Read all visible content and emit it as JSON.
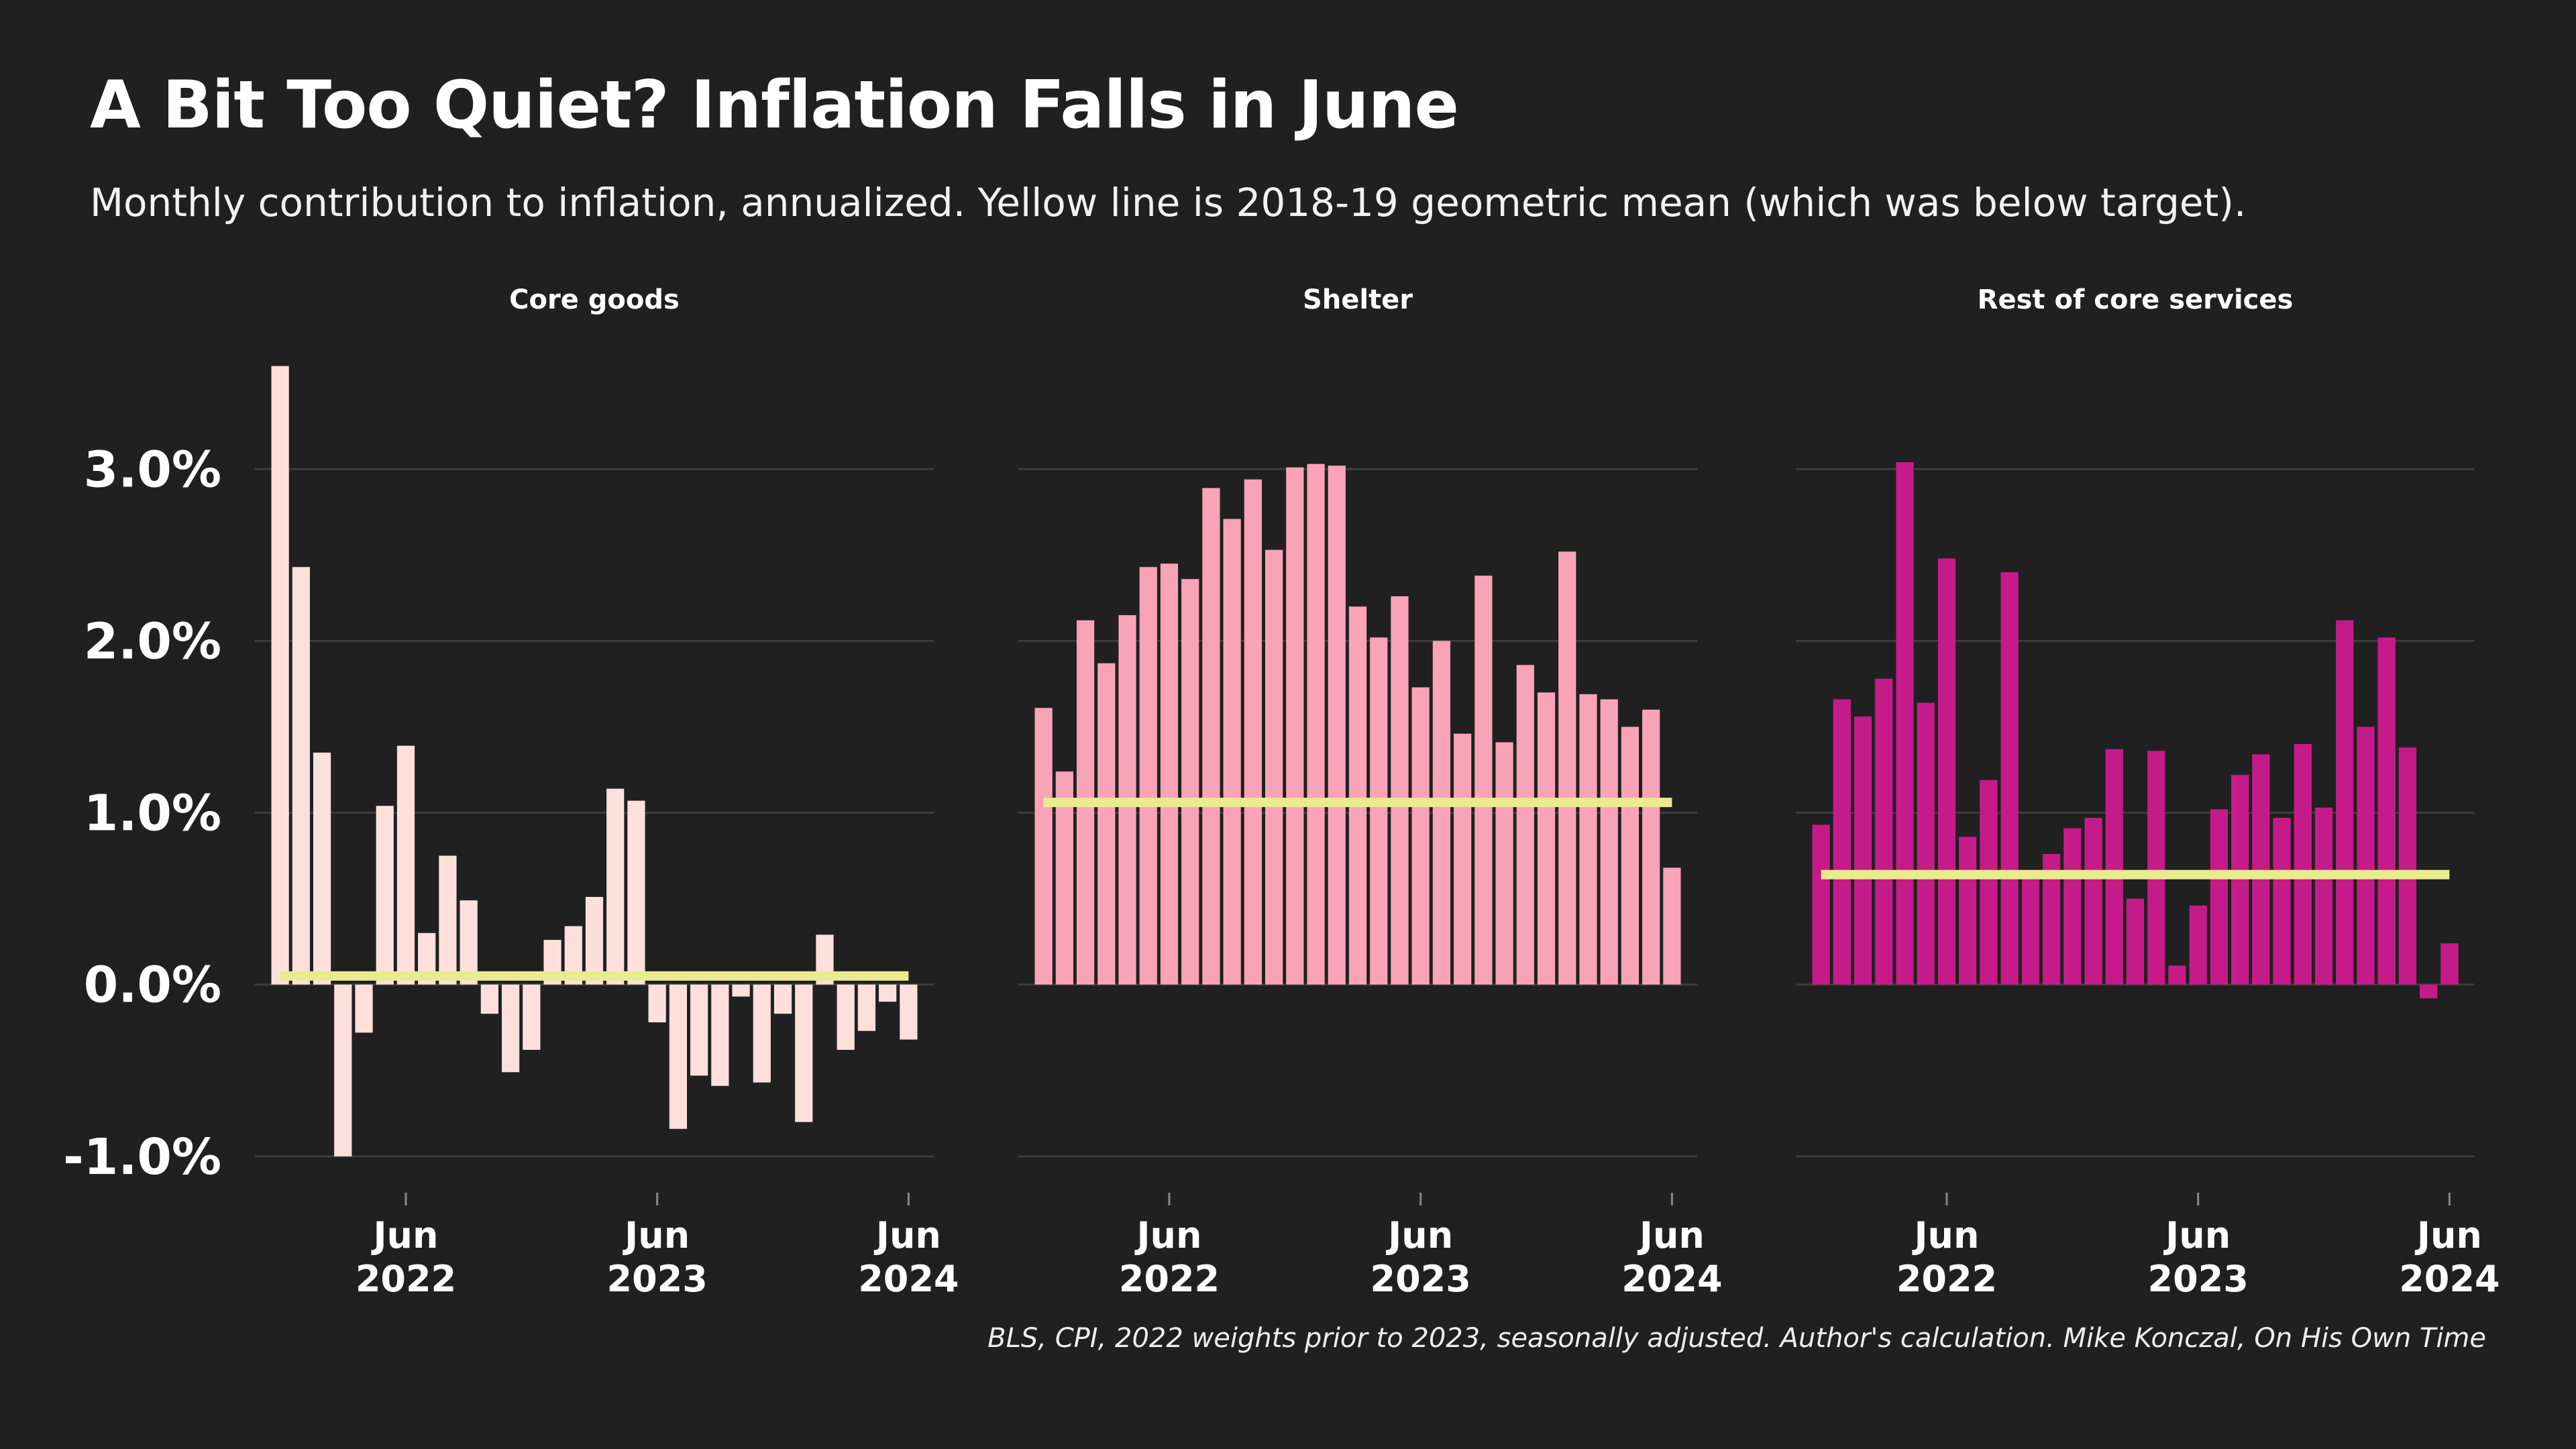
{
  "title": "A Bit Too Quiet? Inflation Falls in June",
  "subtitle": "Monthly contribution to inflation, annualized. Yellow line is 2018-19 geometric mean (which was below target).",
  "caption": "BLS, CPI, 2022 weights prior to 2023, seasonally adjusted. Author's calculation. Mike Konczal, On His Own Time",
  "colors": {
    "background": "#202020",
    "grid": "#3c3c3c",
    "mean_line": "#eaeb8f",
    "core_goods": "#fde0dc",
    "shelter": "#f9a3b9",
    "rest_services": "#c51b8a"
  },
  "chart_data": [
    {
      "type": "bar",
      "title": "Core goods",
      "color": "#fde0dc",
      "x": [
        "2021-12",
        "2022-01",
        "2022-02",
        "2022-03",
        "2022-04",
        "2022-05",
        "2022-06",
        "2022-07",
        "2022-08",
        "2022-09",
        "2022-10",
        "2022-11",
        "2022-12",
        "2023-01",
        "2023-02",
        "2023-03",
        "2023-04",
        "2023-05",
        "2023-06",
        "2023-07",
        "2023-08",
        "2023-09",
        "2023-10",
        "2023-11",
        "2023-12",
        "2024-01",
        "2024-02",
        "2024-03",
        "2024-04",
        "2024-05",
        "2024-06"
      ],
      "values": [
        3.6,
        2.43,
        1.35,
        -1.0,
        -0.28,
        1.04,
        1.39,
        0.3,
        0.75,
        0.49,
        -0.17,
        -0.51,
        -0.38,
        0.26,
        0.34,
        0.51,
        1.14,
        1.07,
        -0.22,
        -0.84,
        -0.53,
        -0.59,
        -0.07,
        -0.57,
        -0.17,
        -0.8,
        0.29,
        -0.38,
        -0.27,
        -0.1,
        -0.32
      ],
      "mean": 0.05,
      "x_ticks": [
        {
          "date": "2022-06",
          "label": [
            "Jun",
            "2022"
          ]
        },
        {
          "date": "2023-06",
          "label": [
            "Jun",
            "2023"
          ]
        },
        {
          "date": "2024-06",
          "label": [
            "Jun",
            "2024"
          ]
        }
      ],
      "y_ticks": [
        "-1.0%",
        "0.0%",
        "1.0%",
        "2.0%",
        "3.0%"
      ],
      "ylim": [
        -1.2,
        3.7
      ],
      "grid": true
    },
    {
      "type": "bar",
      "title": "Shelter",
      "color": "#f9a3b9",
      "x": [
        "2021-12",
        "2022-01",
        "2022-02",
        "2022-03",
        "2022-04",
        "2022-05",
        "2022-06",
        "2022-07",
        "2022-08",
        "2022-09",
        "2022-10",
        "2022-11",
        "2022-12",
        "2023-01",
        "2023-02",
        "2023-03",
        "2023-04",
        "2023-05",
        "2023-06",
        "2023-07",
        "2023-08",
        "2023-09",
        "2023-10",
        "2023-11",
        "2023-12",
        "2024-01",
        "2024-02",
        "2024-03",
        "2024-04",
        "2024-05",
        "2024-06"
      ],
      "values": [
        1.61,
        1.24,
        2.12,
        1.87,
        2.15,
        2.43,
        2.45,
        2.36,
        2.89,
        2.71,
        2.94,
        2.53,
        3.01,
        3.03,
        3.02,
        2.2,
        2.02,
        2.26,
        1.73,
        2.0,
        1.46,
        2.38,
        1.41,
        1.86,
        1.7,
        2.52,
        1.69,
        1.66,
        1.5,
        1.6,
        0.68
      ],
      "mean": 1.06,
      "x_ticks": [
        {
          "date": "2022-06",
          "label": [
            "Jun",
            "2022"
          ]
        },
        {
          "date": "2023-06",
          "label": [
            "Jun",
            "2023"
          ]
        },
        {
          "date": "2024-06",
          "label": [
            "Jun",
            "2024"
          ]
        }
      ],
      "ylim": [
        -1.2,
        3.7
      ],
      "grid": true
    },
    {
      "type": "bar",
      "title": "Rest of core services",
      "color": "#c51b8a",
      "x": [
        "2021-12",
        "2022-01",
        "2022-02",
        "2022-03",
        "2022-04",
        "2022-05",
        "2022-06",
        "2022-07",
        "2022-08",
        "2022-09",
        "2022-10",
        "2022-11",
        "2022-12",
        "2023-01",
        "2023-02",
        "2023-03",
        "2023-04",
        "2023-05",
        "2023-06",
        "2023-07",
        "2023-08",
        "2023-09",
        "2023-10",
        "2023-11",
        "2023-12",
        "2024-01",
        "2024-02",
        "2024-03",
        "2024-04",
        "2024-05",
        "2024-06"
      ],
      "values": [
        0.93,
        1.66,
        1.56,
        1.78,
        3.04,
        1.64,
        2.48,
        0.86,
        1.19,
        2.4,
        0.63,
        0.76,
        0.91,
        0.97,
        1.37,
        0.5,
        1.36,
        0.11,
        0.46,
        1.02,
        1.22,
        1.34,
        0.97,
        1.4,
        1.03,
        2.12,
        1.5,
        2.02,
        1.38,
        -0.08,
        0.24
      ],
      "mean": 0.64,
      "x_ticks": [
        {
          "date": "2022-06",
          "label": [
            "Jun",
            "2022"
          ]
        },
        {
          "date": "2023-06",
          "label": [
            "Jun",
            "2023"
          ]
        },
        {
          "date": "2024-06",
          "label": [
            "Jun",
            "2024"
          ]
        }
      ],
      "ylim": [
        -1.2,
        3.7
      ],
      "grid": true
    }
  ]
}
